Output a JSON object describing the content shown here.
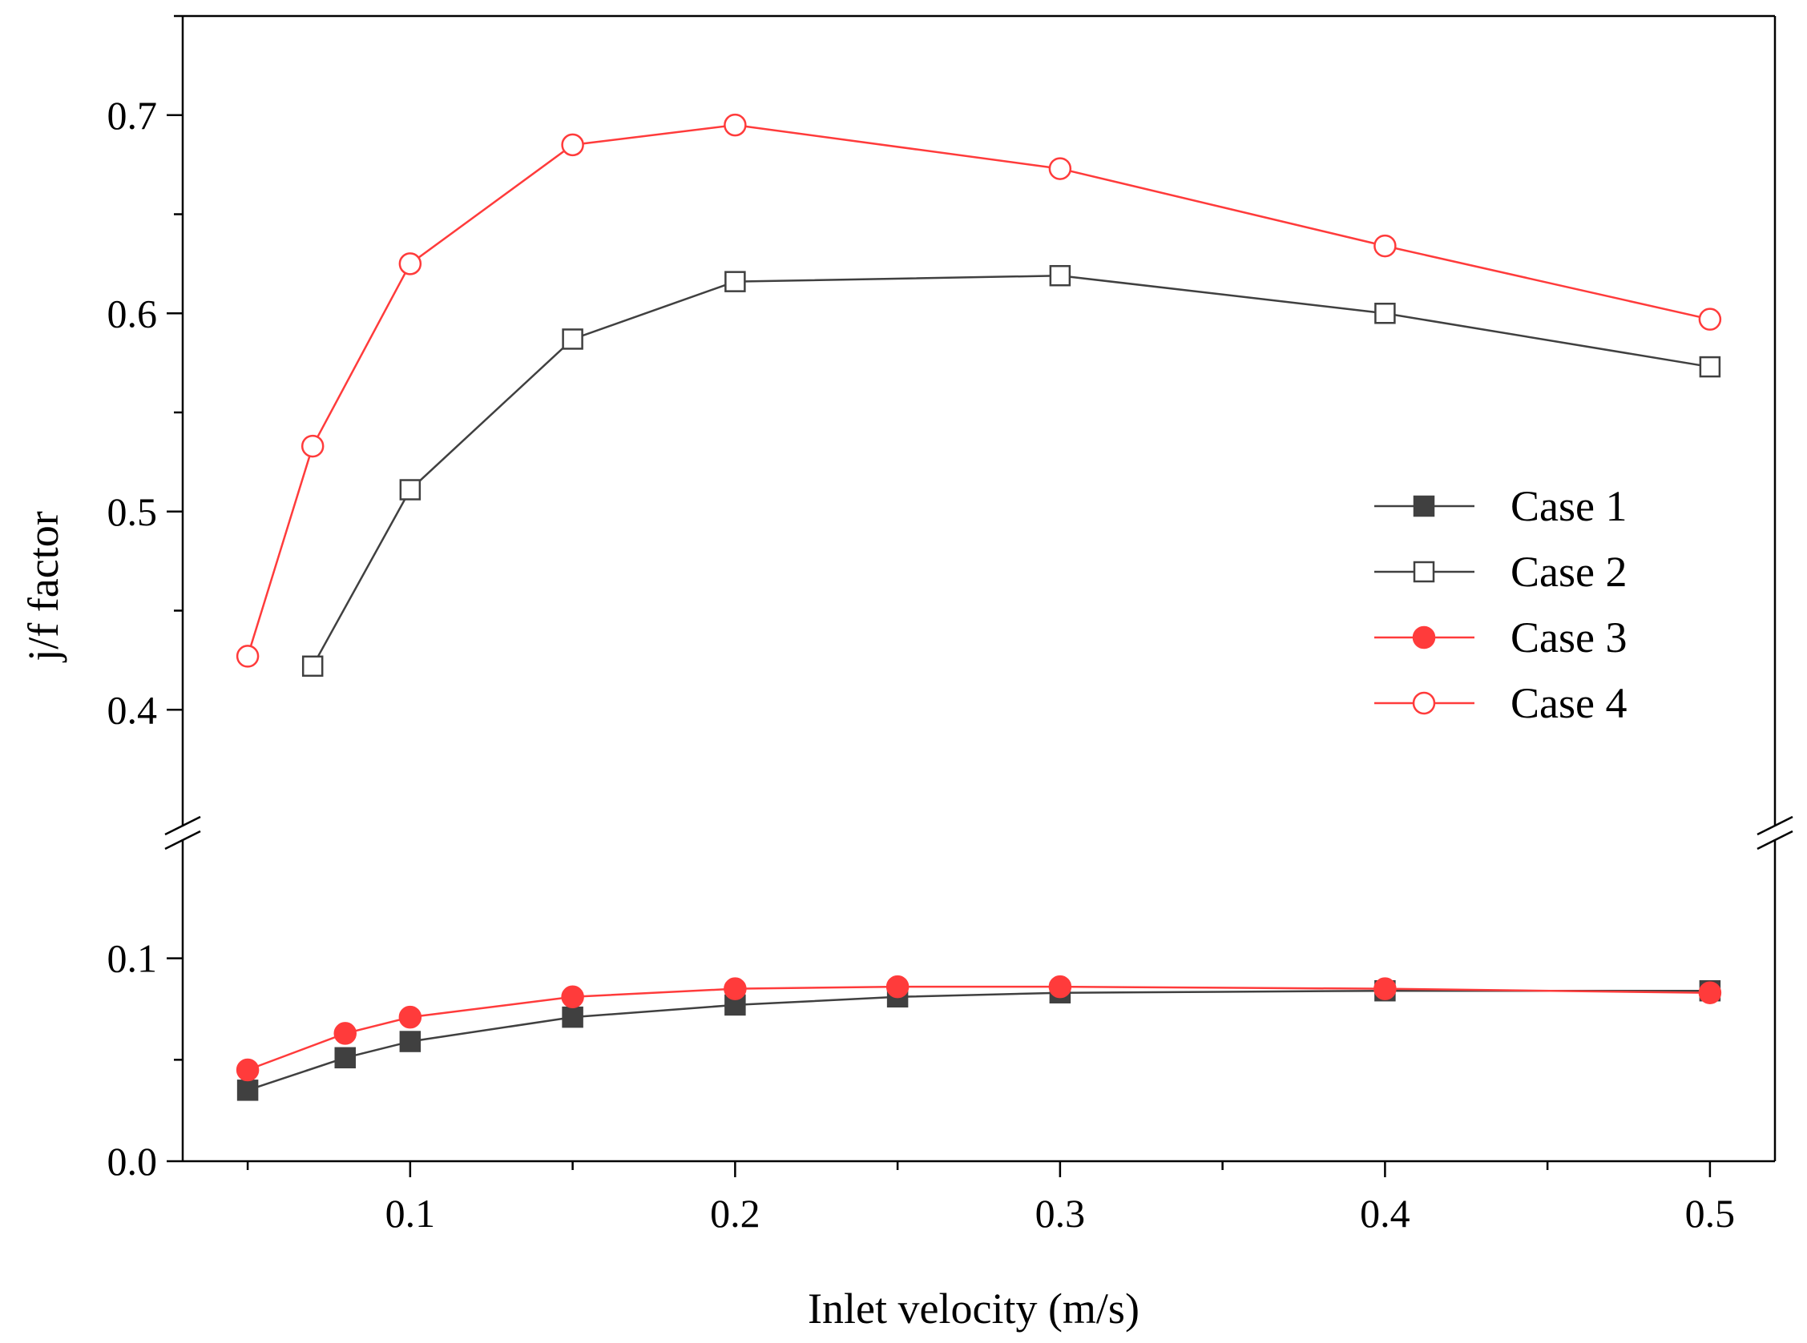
{
  "chart_data": {
    "type": "line",
    "xlabel": "Inlet velocity (m/s)",
    "ylabel": "j/f factor",
    "xlim": [
      0.03,
      0.52
    ],
    "x_ticks": [
      0.1,
      0.2,
      0.3,
      0.4,
      0.5
    ],
    "x_tick_labels": [
      "0.1",
      "0.2",
      "0.3",
      "0.4",
      "0.5"
    ],
    "y_axis_break": true,
    "y_lower_range": [
      0.0,
      0.15
    ],
    "y_upper_range": [
      0.35,
      0.75
    ],
    "y_lower_ticks": [
      0.0,
      0.1
    ],
    "y_lower_tick_labels": [
      "0.0",
      "0.1"
    ],
    "y_upper_ticks": [
      0.4,
      0.5,
      0.6,
      0.7
    ],
    "y_upper_tick_labels": [
      "0.4",
      "0.5",
      "0.6",
      "0.7"
    ],
    "legend_position": "right",
    "grid": false,
    "series": [
      {
        "name": "Case 1",
        "color": "#404040",
        "marker": "square-filled",
        "x": [
          0.05,
          0.08,
          0.1,
          0.15,
          0.2,
          0.25,
          0.3,
          0.4,
          0.5
        ],
        "y": [
          0.035,
          0.051,
          0.059,
          0.071,
          0.077,
          0.081,
          0.083,
          0.084,
          0.084
        ]
      },
      {
        "name": "Case 2",
        "color": "#404040",
        "marker": "square-open",
        "x": [
          0.07,
          0.1,
          0.15,
          0.2,
          0.3,
          0.4,
          0.5
        ],
        "y": [
          0.422,
          0.511,
          0.587,
          0.616,
          0.619,
          0.6,
          0.573
        ]
      },
      {
        "name": "Case 3",
        "color": "#ff3b3b",
        "marker": "circle-filled",
        "x": [
          0.05,
          0.08,
          0.1,
          0.15,
          0.2,
          0.25,
          0.3,
          0.4,
          0.5
        ],
        "y": [
          0.045,
          0.063,
          0.071,
          0.081,
          0.085,
          0.086,
          0.086,
          0.085,
          0.083
        ]
      },
      {
        "name": "Case 4",
        "color": "#ff3b3b",
        "marker": "circle-open",
        "x": [
          0.05,
          0.07,
          0.1,
          0.15,
          0.2,
          0.3,
          0.4,
          0.5
        ],
        "y": [
          0.427,
          0.533,
          0.625,
          0.685,
          0.695,
          0.673,
          0.634,
          0.597
        ]
      }
    ]
  }
}
